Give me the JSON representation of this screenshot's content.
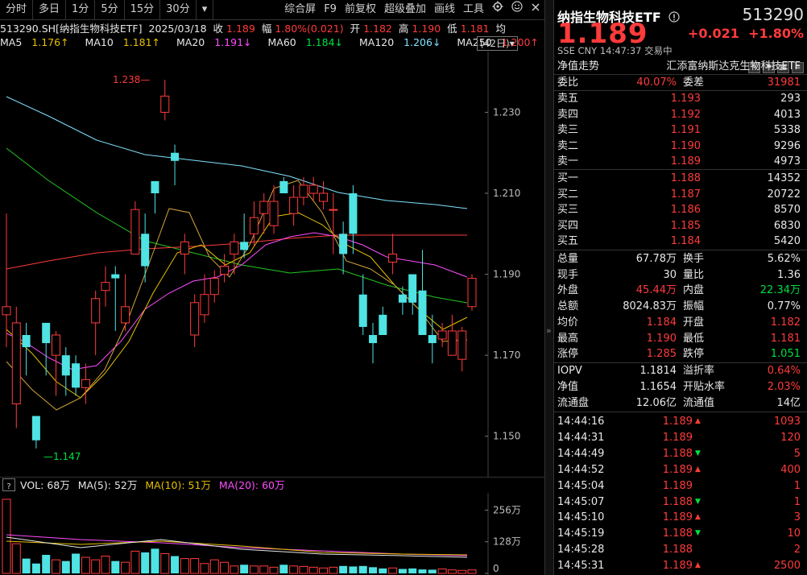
{
  "toolbar": {
    "items": [
      "分时",
      "多日",
      "1分",
      "5分",
      "15分",
      "30分",
      "▾"
    ],
    "right_items": [
      "综合屏",
      "F9",
      "前复权",
      "超级叠加",
      "画线",
      "工具"
    ]
  },
  "infobar": {
    "code_name": "513290.SH[纳指生物科技ETF]",
    "date": "2025/03/18",
    "close_label": "收",
    "close": "1.189",
    "amp_label": "幅",
    "amp": "1.80%(0.021)",
    "open_label": "开",
    "open": "1.182",
    "high_label": "高",
    "high": "1.190",
    "low_label": "低",
    "low": "1.181",
    "tail": "均"
  },
  "ma": {
    "ma5": "MA5",
    "ma5_val": "1.176↑",
    "ma10": "MA10",
    "ma10_val": "1.181↑",
    "ma20": "MA20",
    "ma20_val": "1.191↓",
    "ma60": "MA60",
    "ma60_val": "1.184↓",
    "ma120": "MA120",
    "ma120_val": "1.206↓",
    "ma250": "MA250",
    "ma250_val": "1.200↑",
    "days": "(42日)▾"
  },
  "chart_data": {
    "type": "candlestick",
    "y_ticks": [
      "1.230",
      "1.210",
      "1.190",
      "1.170",
      "1.150"
    ],
    "high_marker": "1.238",
    "low_marker": "1.147",
    "vol_ticks": [
      "256万",
      "128万",
      "0"
    ]
  },
  "volbar": {
    "q": "?",
    "vol": "VOL: 68万",
    "ma5": "MA(5): 52万",
    "ma10": "MA(10): 51万",
    "ma20": "MA(20): 60万"
  },
  "right": {
    "title": "纳指生物科技ETF",
    "code": "513290",
    "price": "1.189",
    "change": "+0.021",
    "change_pct": "+1.80%",
    "sub": "SSE  CNY  14:47:37  交易中",
    "nav_label": "净值走势",
    "nav_name": "汇添富纳斯达克生物科技ETF",
    "weibi_label": "委比",
    "weibi": "40.07%",
    "weicha_label": "委差",
    "weicha": "31981",
    "asks": [
      {
        "label": "卖五",
        "price": "1.193",
        "vol": "293"
      },
      {
        "label": "卖四",
        "price": "1.192",
        "vol": "4013"
      },
      {
        "label": "卖三",
        "price": "1.191",
        "vol": "5338"
      },
      {
        "label": "卖二",
        "price": "1.190",
        "vol": "9296"
      },
      {
        "label": "卖一",
        "price": "1.189",
        "vol": "4973"
      }
    ],
    "bids": [
      {
        "label": "买一",
        "price": "1.188",
        "vol": "14352"
      },
      {
        "label": "买二",
        "price": "1.187",
        "vol": "20722"
      },
      {
        "label": "买三",
        "price": "1.186",
        "vol": "8570"
      },
      {
        "label": "买四",
        "price": "1.185",
        "vol": "6830"
      },
      {
        "label": "买五",
        "price": "1.184",
        "vol": "5420"
      }
    ],
    "stats": [
      {
        "l1": "总量",
        "v1": "67.78万",
        "l2": "换手",
        "v2": "5.62%",
        "c1": "white",
        "c2": "white"
      },
      {
        "l1": "现手",
        "v1": "30",
        "l2": "量比",
        "v2": "1.36",
        "c1": "white",
        "c2": "white"
      },
      {
        "l1": "外盘",
        "v1": "45.44万",
        "l2": "内盘",
        "v2": "22.34万",
        "c1": "red",
        "c2": "green"
      },
      {
        "l1": "总额",
        "v1": "8024.83万",
        "l2": "振幅",
        "v2": "0.77%",
        "c1": "white",
        "c2": "white"
      },
      {
        "l1": "均价",
        "v1": "1.184",
        "l2": "开盘",
        "v2": "1.182",
        "c1": "red",
        "c2": "red"
      },
      {
        "l1": "最高",
        "v1": "1.190",
        "l2": "最低",
        "v2": "1.181",
        "c1": "red",
        "c2": "red"
      },
      {
        "l1": "涨停",
        "v1": "1.285",
        "l2": "跌停",
        "v2": "1.051",
        "c1": "red",
        "c2": "green"
      }
    ],
    "stats2": [
      {
        "l1": "IOPV",
        "v1": "1.1814",
        "l2": "溢折率",
        "v2": "0.64%",
        "c1": "white",
        "c2": "red"
      },
      {
        "l1": "净值",
        "v1": "1.1654",
        "l2": "开贴水率",
        "v2": "2.03%",
        "c1": "white",
        "c2": "red"
      },
      {
        "l1": "流通盘",
        "v1": "12.06亿",
        "l2": "流通值",
        "v2": "14亿",
        "c1": "white",
        "c2": "white"
      }
    ],
    "ticks": [
      {
        "t": "14:44:16",
        "p": "1.189",
        "dir": "up",
        "v": "1093"
      },
      {
        "t": "14:44:31",
        "p": "1.189",
        "dir": "",
        "v": "120"
      },
      {
        "t": "14:44:49",
        "p": "1.188",
        "dir": "down",
        "v": "5"
      },
      {
        "t": "14:44:52",
        "p": "1.189",
        "dir": "up",
        "v": "400"
      },
      {
        "t": "14:45:04",
        "p": "1.189",
        "dir": "",
        "v": "1"
      },
      {
        "t": "14:45:07",
        "p": "1.188",
        "dir": "down",
        "v": "1"
      },
      {
        "t": "14:45:10",
        "p": "1.189",
        "dir": "up",
        "v": "3"
      },
      {
        "t": "14:45:19",
        "p": "1.188",
        "dir": "down",
        "v": "10"
      },
      {
        "t": "14:45:28",
        "p": "1.188",
        "dir": "",
        "v": "2"
      },
      {
        "t": "14:45:31",
        "p": "1.189",
        "dir": "up",
        "v": "2500"
      }
    ]
  }
}
